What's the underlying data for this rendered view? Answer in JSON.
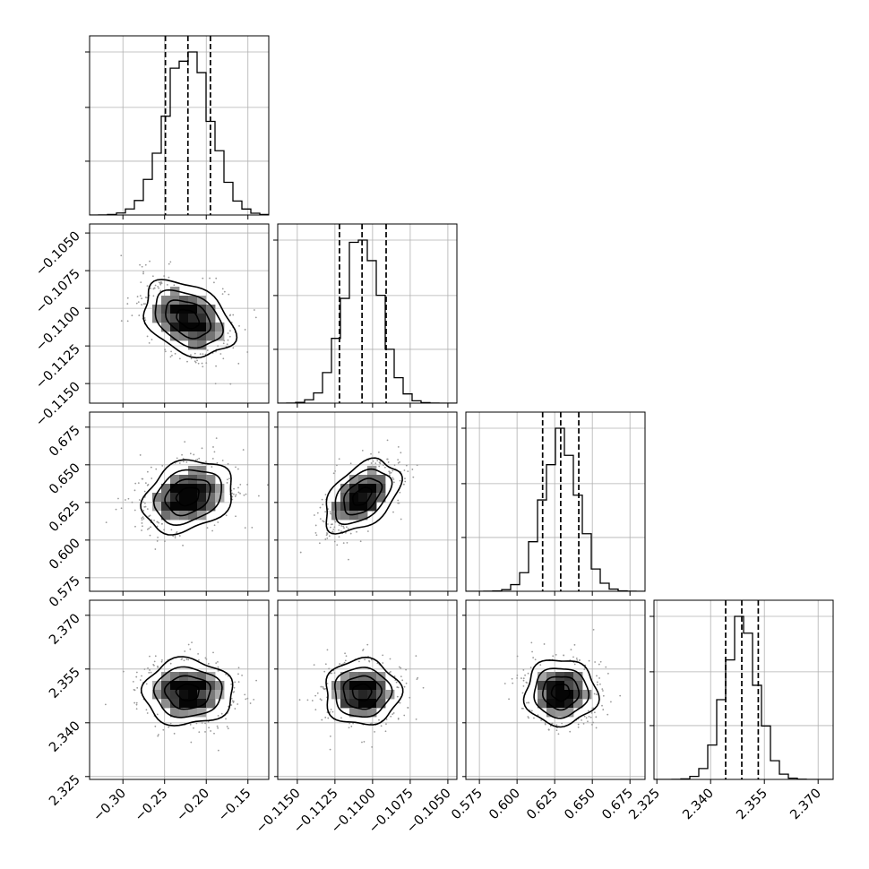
{
  "chart_data": {
    "type": "corner",
    "parameters": [
      {
        "mean": -0.222,
        "sigma": 0.027,
        "quantiles": [
          -0.249,
          -0.222,
          -0.195
        ],
        "range": [
          -0.34,
          -0.125
        ],
        "ticks": [
          -0.3,
          -0.25,
          -0.2,
          -0.15
        ],
        "tick_labels": [
          "−0.30",
          "−0.25",
          "−0.20",
          "−0.15"
        ]
      },
      {
        "mean": -0.1107,
        "sigma": 0.00125,
        "quantiles": [
          -0.1122,
          -0.1107,
          -0.1091
        ],
        "range": [
          -0.1163,
          -0.1044
        ],
        "ticks": [
          -0.115,
          -0.1125,
          -0.11,
          -0.1075,
          -0.105
        ],
        "tick_labels": [
          "−0.1150",
          "−0.1125",
          "−0.1100",
          "−0.1075",
          "−0.1050"
        ]
      },
      {
        "mean": 0.629,
        "sigma": 0.012,
        "quantiles": [
          0.617,
          0.629,
          0.641
        ],
        "range": [
          0.566,
          0.685
        ],
        "ticks": [
          0.575,
          0.6,
          0.625,
          0.65,
          0.675
        ],
        "tick_labels": [
          "0.575",
          "0.600",
          "0.625",
          "0.650",
          "0.675"
        ]
      },
      {
        "mean": 2.3485,
        "sigma": 0.0046,
        "quantiles": [
          2.3442,
          2.3487,
          2.3533
        ],
        "range": [
          2.3242,
          2.3742
        ],
        "ticks": [
          2.325,
          2.34,
          2.355,
          2.37
        ],
        "tick_labels": [
          "2.325",
          "2.340",
          "2.355",
          "2.370"
        ]
      }
    ],
    "correlations": [
      [
        1.0,
        -0.35,
        0.25,
        0.0
      ],
      [
        -0.35,
        1.0,
        0.45,
        0.0
      ],
      [
        0.25,
        0.45,
        1.0,
        0.0
      ],
      [
        0.0,
        0.0,
        0.0,
        1.0
      ]
    ],
    "contour_levels_sigma": [
      0.5,
      1.0,
      1.5,
      2.0
    ],
    "hist_bins": 20,
    "quantile_line_style": "dashed",
    "grid": true
  }
}
